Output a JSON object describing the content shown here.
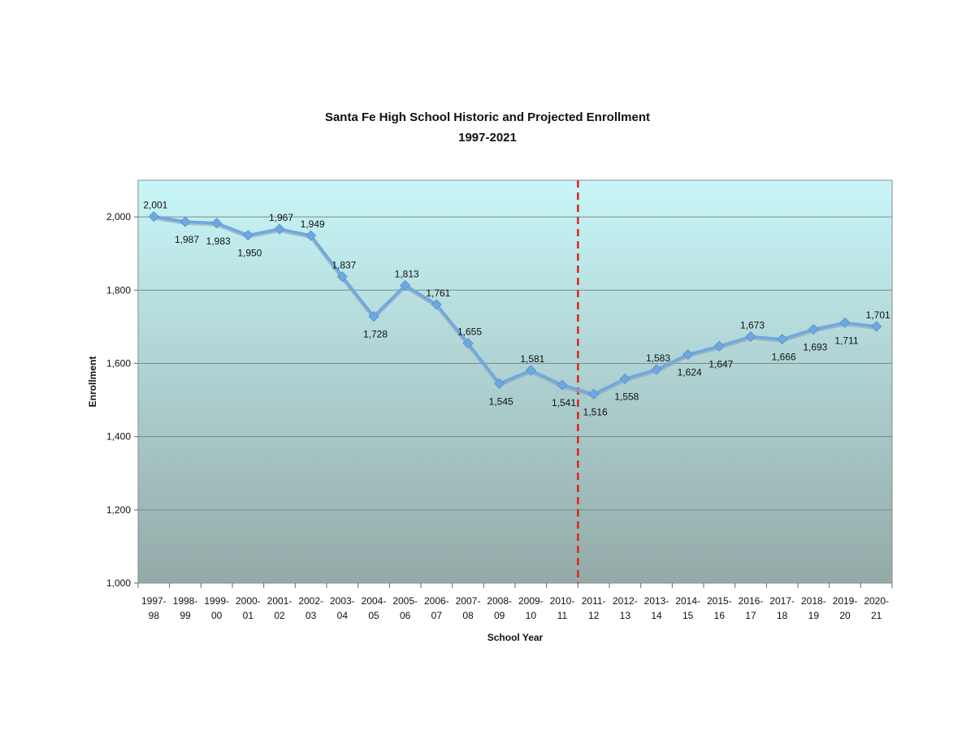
{
  "chart_data": {
    "type": "line",
    "title": "Santa Fe High School Historic and Projected Enrollment",
    "subtitle": "1997-2021",
    "xlabel": "School Year",
    "ylabel": "Enrollment",
    "ylim": [
      1000,
      2100
    ],
    "yticks": [
      1000,
      1200,
      1400,
      1600,
      1800,
      2000
    ],
    "ytick_labels": [
      "1,000",
      "1,200",
      "1,400",
      "1,600",
      "1,800",
      "2,000"
    ],
    "grid": true,
    "categories": [
      [
        "1997-",
        "98"
      ],
      [
        "1998-",
        "99"
      ],
      [
        "1999-",
        "00"
      ],
      [
        "2000-",
        "01"
      ],
      [
        "2001-",
        "02"
      ],
      [
        "2002-",
        "03"
      ],
      [
        "2003-",
        "04"
      ],
      [
        "2004-",
        "05"
      ],
      [
        "2005-",
        "06"
      ],
      [
        "2006-",
        "07"
      ],
      [
        "2007-",
        "08"
      ],
      [
        "2008-",
        "09"
      ],
      [
        "2009-",
        "10"
      ],
      [
        "2010-",
        "11"
      ],
      [
        "2011-",
        "12"
      ],
      [
        "2012-",
        "13"
      ],
      [
        "2013-",
        "14"
      ],
      [
        "2014-",
        "15"
      ],
      [
        "2015-",
        "16"
      ],
      [
        "2016-",
        "17"
      ],
      [
        "2017-",
        "18"
      ],
      [
        "2018-",
        "19"
      ],
      [
        "2019-",
        "20"
      ],
      [
        "2020-",
        "21"
      ]
    ],
    "series": [
      {
        "values": [
          2001,
          1987,
          1983,
          1950,
          1967,
          1949,
          1837,
          1728,
          1813,
          1761,
          1655,
          1545,
          1581,
          1541,
          1516,
          1558,
          1583,
          1624,
          1647,
          1673,
          1666,
          1693,
          1711,
          1701
        ],
        "labels": [
          "2,001",
          "1,987",
          "1,983",
          "1,950",
          "1,967",
          "1,949",
          "1,837",
          "1,728",
          "1,813",
          "1,761",
          "1,655",
          "1,545",
          "1,581",
          "1,541",
          "1,516",
          "1,558",
          "1,583",
          "1,624",
          "1,647",
          "1,673",
          "1,666",
          "1,693",
          "1,711",
          "1,701"
        ],
        "label_positions": [
          "above",
          "below",
          "below",
          "below",
          "above",
          "above",
          "above",
          "below",
          "above",
          "above",
          "above",
          "below",
          "above",
          "below",
          "below",
          "below",
          "above",
          "below",
          "below",
          "above",
          "below",
          "below",
          "below",
          "above"
        ],
        "color": "#6fa8e0"
      }
    ],
    "divider_after_category_index": 13,
    "divider_color": "#d7261e",
    "plot_gradient": [
      "#c8f6f8",
      "#93aaa8"
    ]
  }
}
